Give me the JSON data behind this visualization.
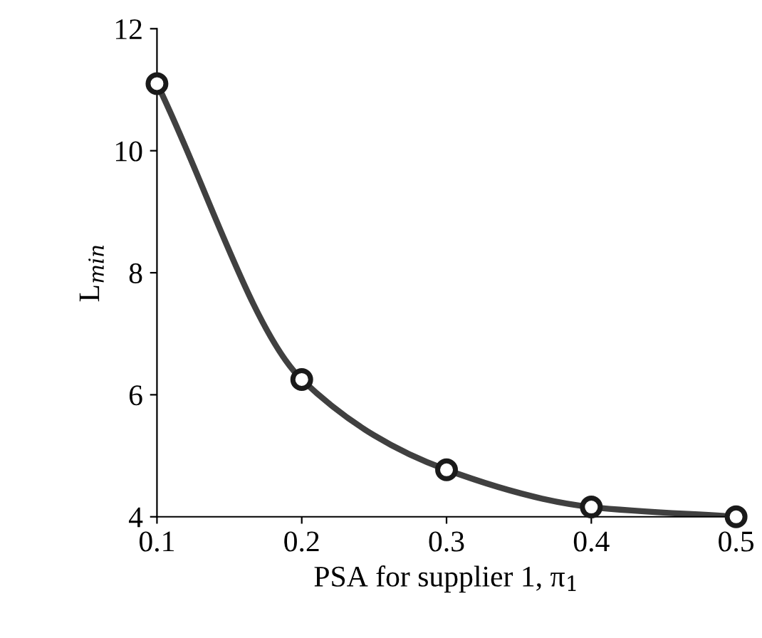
{
  "chart_data": {
    "type": "line",
    "xlabel": "PSA for supplier 1, π$_{1}$",
    "ylabel": "L$_{min}$",
    "x": [
      0.1,
      0.2,
      0.3,
      0.4,
      0.5
    ],
    "series": [
      {
        "color": "#404040",
        "values": [
          11.1,
          6.25,
          4.77,
          4.16,
          4.0
        ]
      }
    ],
    "xlim": [
      0.1,
      0.5
    ],
    "xticks": [
      0.1,
      0.2,
      0.3,
      0.4,
      0.5
    ],
    "ylim": [
      4,
      12
    ],
    "yticks": [
      4,
      6,
      8,
      10,
      12
    ],
    "marker": "circle",
    "line_style": "solid",
    "grid": false,
    "legend": false
  }
}
